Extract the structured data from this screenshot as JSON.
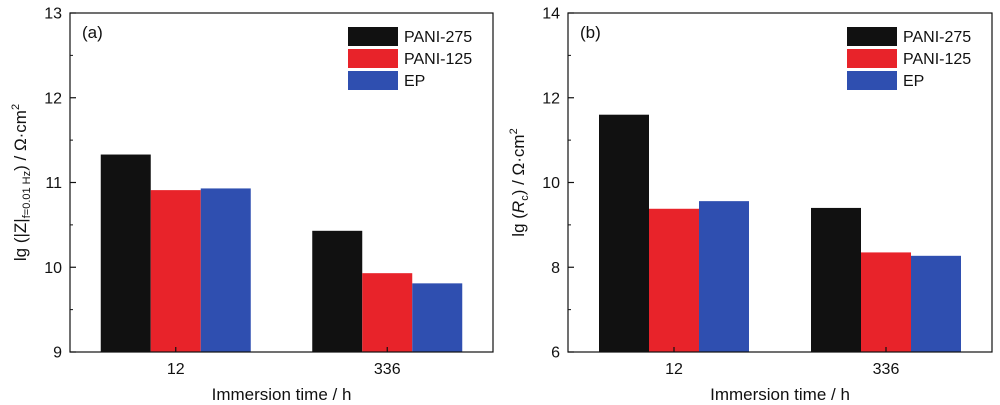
{
  "chart_data": [
    {
      "type": "bar",
      "panel_label": "(a)",
      "categories": [
        "12",
        "336"
      ],
      "series": [
        {
          "name": "PANI-275",
          "values": [
            11.33,
            10.43
          ]
        },
        {
          "name": "PANI-125",
          "values": [
            10.91,
            9.93
          ]
        },
        {
          "name": "EP",
          "values": [
            10.93,
            9.81
          ]
        }
      ],
      "title": "",
      "xlabel": "Immersion time / h",
      "ylabel": {
        "prefix": "lg (|Z|",
        "sub": "f=0.01 Hz",
        "mid": ") / Ω·cm",
        "sup": "2"
      },
      "ylim": [
        9,
        13
      ],
      "yticks": [
        9,
        10,
        11,
        12,
        13
      ],
      "grid": false,
      "legend_position": "top-right"
    },
    {
      "type": "bar",
      "panel_label": "(b)",
      "categories": [
        "12",
        "336"
      ],
      "series": [
        {
          "name": "PANI-275",
          "values": [
            11.6,
            9.4
          ]
        },
        {
          "name": "PANI-125",
          "values": [
            9.38,
            8.35
          ]
        },
        {
          "name": "EP",
          "values": [
            9.56,
            8.27
          ]
        }
      ],
      "title": "",
      "xlabel": "Immersion time / h",
      "ylabel": {
        "prefix": "lg (",
        "italic": "R",
        "sub": "c",
        "mid": ") / Ω·cm",
        "sup": "2"
      },
      "ylim": [
        6,
        14
      ],
      "yticks": [
        6,
        8,
        10,
        12,
        14
      ],
      "grid": false,
      "legend_position": "top-right"
    }
  ],
  "colors": {
    "PANI-275": "#111111",
    "PANI-125": "#e8232a",
    "EP": "#2f4fb0"
  }
}
